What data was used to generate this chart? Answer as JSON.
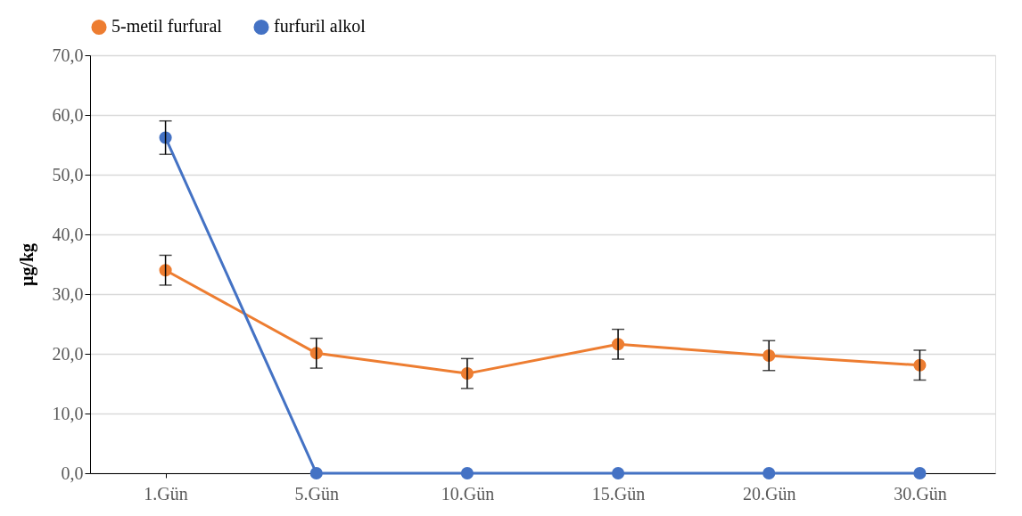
{
  "chart_data": {
    "type": "line",
    "ylabel": "µg/kg",
    "categories": [
      "1.Gün",
      "5.Gün",
      "10.Gün",
      "15.Gün",
      "20.Gün",
      "30.Gün"
    ],
    "series": [
      {
        "name": "5-metil furfural",
        "color": "#ed7d31",
        "values": [
          34.0,
          20.1,
          16.7,
          21.6,
          19.7,
          18.1
        ],
        "errors": [
          2.5,
          2.5,
          2.5,
          2.5,
          2.5,
          2.5
        ]
      },
      {
        "name": "furfuril alkol",
        "color": "#4472c4",
        "values": [
          56.2,
          0,
          0,
          0,
          0,
          0
        ],
        "errors": [
          2.8,
          null,
          null,
          null,
          null,
          null
        ]
      }
    ],
    "ylim": [
      0,
      70
    ],
    "yticks": [
      {
        "value": 0,
        "label": "0,0"
      },
      {
        "value": 10,
        "label": "10,0"
      },
      {
        "value": 20,
        "label": "20,0"
      },
      {
        "value": 30,
        "label": "30,0"
      },
      {
        "value": 40,
        "label": "40,0"
      },
      {
        "value": 50,
        "label": "50,0"
      },
      {
        "value": 60,
        "label": "60,0"
      },
      {
        "value": 70,
        "label": "70,0"
      }
    ],
    "grid": "y",
    "legend": "top",
    "marker": "circle",
    "line_style": "solid"
  }
}
